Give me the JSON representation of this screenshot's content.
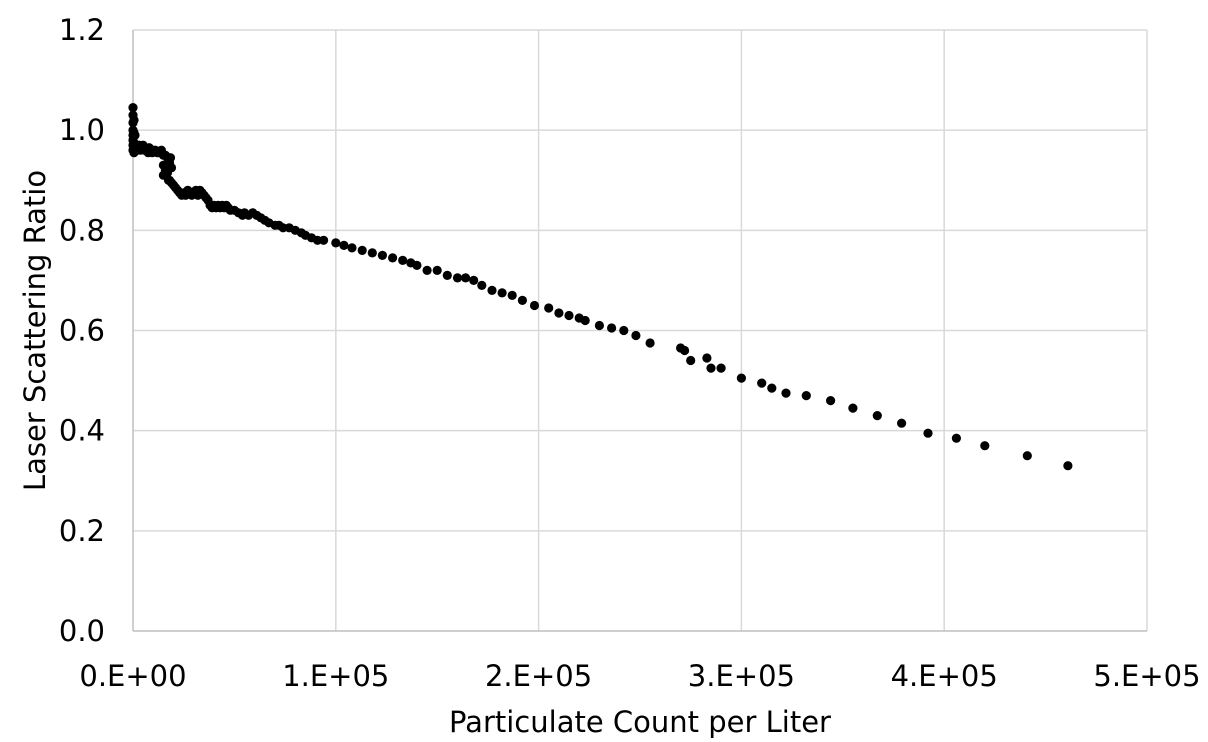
{
  "chart_data": {
    "type": "scatter",
    "title": "",
    "xlabel": "Particulate Count per Liter",
    "ylabel": "Laser Scattering Ratio",
    "xlim": [
      0,
      500000
    ],
    "ylim": [
      0,
      1.2
    ],
    "x_ticks": [
      0,
      100000,
      200000,
      300000,
      400000,
      500000
    ],
    "x_tick_labels": [
      "0.E+00",
      "1.E+05",
      "2.E+05",
      "3.E+05",
      "4.E+05",
      "5.E+05"
    ],
    "y_ticks": [
      0,
      0.2,
      0.4,
      0.6,
      0.8,
      1.0,
      1.2
    ],
    "y_tick_labels": [
      "0.0",
      "0.2",
      "0.4",
      "0.6",
      "0.8",
      "1.0",
      "1.2"
    ],
    "grid": true,
    "legend": "none",
    "marker_color": "#000000",
    "series": [
      {
        "points": [
          [
            0,
            1.045
          ],
          [
            0,
            1.03
          ],
          [
            0,
            1.015
          ],
          [
            0,
            1.0
          ],
          [
            0,
            0.99
          ],
          [
            0,
            0.98
          ],
          [
            0,
            0.97
          ],
          [
            0,
            0.96
          ],
          [
            500,
            1.02
          ],
          [
            500,
            0.995
          ],
          [
            500,
            0.975
          ],
          [
            500,
            0.955
          ],
          [
            1000,
            0.99
          ],
          [
            1000,
            0.97
          ],
          [
            1000,
            0.96
          ],
          [
            2000,
            0.97
          ],
          [
            2500,
            0.965
          ],
          [
            3000,
            0.97
          ],
          [
            3500,
            0.96
          ],
          [
            4000,
            0.965
          ],
          [
            5000,
            0.97
          ],
          [
            5500,
            0.96
          ],
          [
            6000,
            0.965
          ],
          [
            7000,
            0.96
          ],
          [
            7500,
            0.955
          ],
          [
            8000,
            0.965
          ],
          [
            9000,
            0.96
          ],
          [
            9500,
            0.955
          ],
          [
            10000,
            0.96
          ],
          [
            11000,
            0.96
          ],
          [
            12000,
            0.955
          ],
          [
            13000,
            0.955
          ],
          [
            14000,
            0.96
          ],
          [
            15000,
            0.95
          ],
          [
            15000,
            0.93
          ],
          [
            15000,
            0.91
          ],
          [
            16000,
            0.95
          ],
          [
            16000,
            0.92
          ],
          [
            17000,
            0.945
          ],
          [
            17000,
            0.915
          ],
          [
            17500,
            0.9
          ],
          [
            18000,
            0.935
          ],
          [
            18000,
            0.9
          ],
          [
            18500,
            0.945
          ],
          [
            19000,
            0.925
          ],
          [
            19000,
            0.895
          ],
          [
            20000,
            0.89
          ],
          [
            21000,
            0.885
          ],
          [
            22000,
            0.88
          ],
          [
            23000,
            0.875
          ],
          [
            24000,
            0.87
          ],
          [
            25000,
            0.875
          ],
          [
            26000,
            0.87
          ],
          [
            27000,
            0.88
          ],
          [
            28000,
            0.875
          ],
          [
            29000,
            0.87
          ],
          [
            30000,
            0.875
          ],
          [
            31000,
            0.88
          ],
          [
            32000,
            0.87
          ],
          [
            33000,
            0.88
          ],
          [
            34000,
            0.875
          ],
          [
            35000,
            0.87
          ],
          [
            36000,
            0.865
          ],
          [
            37000,
            0.86
          ],
          [
            38000,
            0.85
          ],
          [
            39000,
            0.845
          ],
          [
            40000,
            0.85
          ],
          [
            41000,
            0.845
          ],
          [
            42000,
            0.85
          ],
          [
            43000,
            0.845
          ],
          [
            44000,
            0.85
          ],
          [
            45000,
            0.845
          ],
          [
            46000,
            0.85
          ],
          [
            47000,
            0.845
          ],
          [
            48000,
            0.84
          ],
          [
            50000,
            0.84
          ],
          [
            52000,
            0.835
          ],
          [
            54000,
            0.83
          ],
          [
            55000,
            0.835
          ],
          [
            57000,
            0.83
          ],
          [
            59000,
            0.835
          ],
          [
            61000,
            0.83
          ],
          [
            63000,
            0.825
          ],
          [
            65000,
            0.82
          ],
          [
            67000,
            0.815
          ],
          [
            70000,
            0.81
          ],
          [
            72000,
            0.81
          ],
          [
            74000,
            0.805
          ],
          [
            77000,
            0.805
          ],
          [
            80000,
            0.8
          ],
          [
            83000,
            0.795
          ],
          [
            85000,
            0.79
          ],
          [
            88000,
            0.785
          ],
          [
            91000,
            0.78
          ],
          [
            94000,
            0.78
          ],
          [
            100000,
            0.775
          ],
          [
            104000,
            0.77
          ],
          [
            108000,
            0.765
          ],
          [
            113000,
            0.76
          ],
          [
            118000,
            0.755
          ],
          [
            123000,
            0.75
          ],
          [
            128000,
            0.745
          ],
          [
            133000,
            0.74
          ],
          [
            137000,
            0.735
          ],
          [
            140000,
            0.73
          ],
          [
            145000,
            0.72
          ],
          [
            150000,
            0.72
          ],
          [
            155000,
            0.71
          ],
          [
            160000,
            0.705
          ],
          [
            164000,
            0.705
          ],
          [
            168000,
            0.7
          ],
          [
            172000,
            0.69
          ],
          [
            177000,
            0.68
          ],
          [
            182000,
            0.675
          ],
          [
            187000,
            0.67
          ],
          [
            192000,
            0.66
          ],
          [
            198000,
            0.65
          ],
          [
            205000,
            0.645
          ],
          [
            210000,
            0.635
          ],
          [
            215000,
            0.63
          ],
          [
            220000,
            0.625
          ],
          [
            223000,
            0.62
          ],
          [
            230000,
            0.61
          ],
          [
            236000,
            0.605
          ],
          [
            242000,
            0.6
          ],
          [
            248000,
            0.59
          ],
          [
            255000,
            0.575
          ],
          [
            270000,
            0.565
          ],
          [
            272000,
            0.56
          ],
          [
            275000,
            0.54
          ],
          [
            283000,
            0.545
          ],
          [
            285000,
            0.525
          ],
          [
            290000,
            0.525
          ],
          [
            300000,
            0.505
          ],
          [
            310000,
            0.495
          ],
          [
            315000,
            0.485
          ],
          [
            322000,
            0.475
          ],
          [
            332000,
            0.47
          ],
          [
            344000,
            0.46
          ],
          [
            355000,
            0.445
          ],
          [
            367000,
            0.43
          ],
          [
            379000,
            0.415
          ],
          [
            392000,
            0.395
          ],
          [
            406000,
            0.385
          ],
          [
            420000,
            0.37
          ],
          [
            441000,
            0.35
          ],
          [
            461000,
            0.33
          ]
        ]
      }
    ]
  }
}
